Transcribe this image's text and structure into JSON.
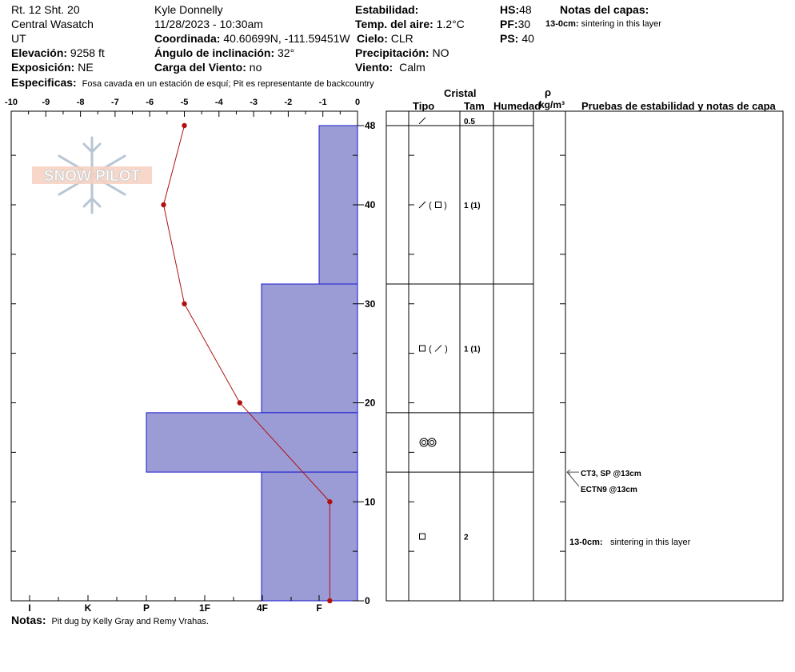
{
  "header": {
    "location_line1": "Rt. 12 Sht. 20",
    "location_line2": "Central Wasatch",
    "location_line3": "UT",
    "elevation_label": "Elevación:",
    "elevation_value": "9258 ft",
    "aspect_label": "Exposición:",
    "aspect_value": "NE",
    "specifics_label": "Especificas:",
    "specifics_value": "Fosa cavada en un estación de esquí; Pit es representante de backcountry",
    "observer": "Kyle Donnelly",
    "datetime": "11/28/2023 - 10:30am",
    "coord_label": "Coordinada:",
    "coord_value": "40.60699N, -111.59451W",
    "slope_label": "Ángulo de inclinación:",
    "slope_value": "32°",
    "wind_load_label": "Carga del Viento:",
    "wind_load_value": "no",
    "stability_label": "Estabilidad:",
    "air_temp_label": "Temp. del aire:",
    "air_temp_value": "1.2°C",
    "sky_label": "Cielo:",
    "sky_value": "CLR",
    "precip_label": "Precipitación:",
    "precip_value": "NO",
    "wind_label": "Viento:",
    "wind_value": "Calm",
    "hs_label": "HS:",
    "hs_value": "48",
    "pf_label": "PF:",
    "pf_value": "30",
    "ps_label": "PS:",
    "ps_value": "40",
    "layer_notes_title": "Notas del capas:",
    "layer_note_range": "13-0cm:",
    "layer_note_text": "sintering in this layer"
  },
  "footer": {
    "notes_label": "Notas:",
    "notes_value": "Pit dug by Kelly Gray and Remy Vrahas."
  },
  "logo": {
    "text": "SNOW PILOT",
    "icon": "snowflake-icon"
  },
  "table_headers": {
    "cristal": "Cristal",
    "tipo": "Tipo",
    "tam": "Tam",
    "humedad": "Humedad",
    "rho": "ρ",
    "density_unit": "kg/m³",
    "tests": "Pruebas de estabilidad y notas de capa"
  },
  "chart_data": {
    "type": "snow_profile",
    "height_axis": {
      "min": 0,
      "max": 48,
      "ticks": [
        0,
        10,
        20,
        30,
        40,
        48
      ]
    },
    "temperature_axis": {
      "min": -10,
      "max": 0,
      "ticks": [
        -10,
        -9,
        -8,
        -7,
        -6,
        -5,
        -4,
        -3,
        -2,
        -1,
        0
      ]
    },
    "hardness_scale": [
      "I",
      "K",
      "P",
      "1F",
      "4F",
      "F"
    ],
    "temperature_profile": [
      {
        "height": 48,
        "temp": -5.0
      },
      {
        "height": 40,
        "temp": -5.6
      },
      {
        "height": 30,
        "temp": -5.0
      },
      {
        "height": 20,
        "temp": -3.4
      },
      {
        "height": 10,
        "temp": -0.8
      },
      {
        "height": 0,
        "temp": -0.8
      }
    ],
    "hardness_layers": [
      {
        "top": 48,
        "bottom": 32,
        "hardness": "F"
      },
      {
        "top": 32,
        "bottom": 19,
        "hardness": "4F"
      },
      {
        "top": 19,
        "bottom": 13,
        "hardness": "1F-"
      },
      {
        "top": 13,
        "bottom": 0,
        "hardness": "4F"
      }
    ],
    "layers": [
      {
        "top": 48,
        "bottom": 48,
        "type_icon": "precipitation-particle-icon",
        "size": "0.5",
        "label_height": 48.5
      },
      {
        "top": 48,
        "bottom": 32,
        "type_icon": "decomposing-with-faceted-icon",
        "size": "1 (1)",
        "label_height": 40
      },
      {
        "top": 32,
        "bottom": 19,
        "type_icon": "faceted-with-decomposing-icon",
        "size": "1 (1)",
        "label_height": 25.5
      },
      {
        "top": 19,
        "bottom": 13,
        "type_icon": "melt-forms-icon",
        "size": "",
        "label_height": 16
      },
      {
        "top": 13,
        "bottom": 0,
        "type_icon": "faceted-crystal-icon",
        "size": "2",
        "label_height": 6.5
      }
    ],
    "stability_tests": [
      {
        "height": 13,
        "text": "CT3, SP @13cm"
      },
      {
        "height": 13,
        "text": "ECTN9 @13cm"
      }
    ],
    "layer_note": {
      "range": "13-0cm:",
      "text": "sintering in this layer",
      "height": 6
    }
  }
}
